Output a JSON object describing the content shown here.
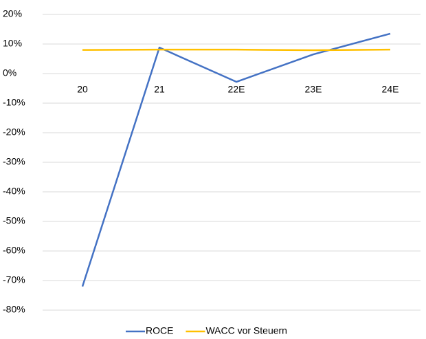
{
  "chart_data": {
    "type": "line",
    "categories": [
      "20",
      "21",
      "22E",
      "23E",
      "24E"
    ],
    "series": [
      {
        "name": "ROCE",
        "color": "#4472c4",
        "values": [
          -72,
          8.8,
          -2.8,
          6.5,
          13.5
        ]
      },
      {
        "name": "WACC vor Steuern",
        "color": "#ffc000",
        "values": [
          8.0,
          8.1,
          8.1,
          7.9,
          8.1
        ]
      }
    ],
    "ylim": [
      -80,
      20
    ],
    "yticks": [
      {
        "value": 20,
        "label": "20%"
      },
      {
        "value": 10,
        "label": "10%"
      },
      {
        "value": 0,
        "label": "0%"
      },
      {
        "value": -10,
        "label": "-10%"
      },
      {
        "value": -20,
        "label": "-20%"
      },
      {
        "value": -30,
        "label": "-30%"
      },
      {
        "value": -40,
        "label": "-40%"
      },
      {
        "value": -50,
        "label": "-50%"
      },
      {
        "value": -60,
        "label": "-60%"
      },
      {
        "value": -70,
        "label": "-70%"
      },
      {
        "value": -80,
        "label": "-80%"
      }
    ],
    "grid": true,
    "legend": "bottom"
  }
}
